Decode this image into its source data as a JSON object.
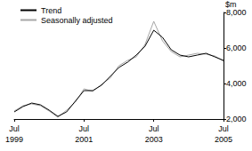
{
  "chart_data": {
    "type": "line",
    "y_label": "$m",
    "categories": [
      "Jul 1999",
      null,
      null,
      null,
      null,
      null,
      null,
      null,
      "Jul 2001",
      null,
      null,
      null,
      null,
      null,
      null,
      null,
      "Jul 2003",
      null,
      null,
      null,
      null,
      null,
      null,
      null,
      "Jul 2005"
    ],
    "series": [
      {
        "name": "Trend",
        "color": "#000000",
        "values": [
          2400,
          2700,
          2900,
          2800,
          2500,
          2150,
          2400,
          3000,
          3600,
          3600,
          3900,
          4400,
          4900,
          5200,
          5600,
          6100,
          7000,
          6600,
          5900,
          5600,
          5500,
          5600,
          5700,
          5500,
          5300
        ]
      },
      {
        "name": "Seasonally adjusted",
        "color": "#a6a6a6",
        "values": [
          2450,
          2750,
          2850,
          2750,
          2450,
          2100,
          2500,
          2950,
          3700,
          3550,
          3950,
          4300,
          5000,
          5300,
          5500,
          6200,
          7500,
          6400,
          5800,
          5500,
          5600,
          5700,
          5650,
          5550,
          5250
        ]
      }
    ],
    "ylim": [
      2000,
      8000
    ],
    "yticks": [
      2000,
      4000,
      6000,
      8000
    ],
    "grid": false,
    "legend": "top-left"
  }
}
